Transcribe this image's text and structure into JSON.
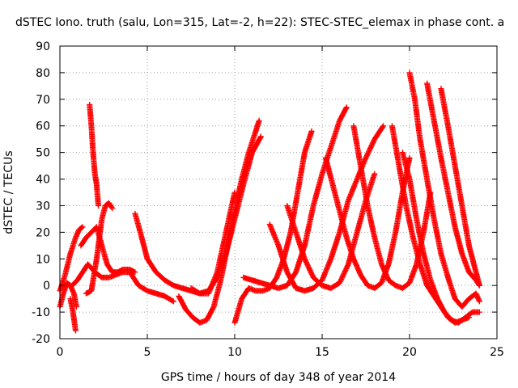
{
  "chart_data": {
    "type": "scatter",
    "title": "dSTEC Iono. truth (salu, Lon=315, Lat=-2, h=22): STEC-STEC_elemax in phase cont. a",
    "xlabel": "GPS time / hours of day 348 of year 2014",
    "ylabel": "dSTEC  / TECUs",
    "xlim": [
      0,
      25
    ],
    "ylim": [
      -20,
      90
    ],
    "xticks": [
      0,
      5,
      10,
      15,
      20,
      25
    ],
    "yticks": [
      -20,
      -10,
      0,
      10,
      20,
      30,
      40,
      50,
      60,
      70,
      80,
      90
    ],
    "grid": true,
    "marker": "+",
    "color": "#ff0000",
    "series": [
      {
        "x": [
          0.0,
          0.2,
          0.4,
          0.6,
          0.8,
          0.95
        ],
        "y": [
          -8,
          -3,
          1,
          0,
          -3,
          -8
        ]
      },
      {
        "x": [
          0.0,
          0.3,
          0.6,
          0.9,
          1.1,
          1.3
        ],
        "y": [
          -2,
          4,
          12,
          18,
          21,
          22
        ]
      },
      {
        "x": [
          0.6,
          0.75,
          0.9
        ],
        "y": [
          -5,
          -10,
          -17
        ]
      },
      {
        "x": [
          0.7,
          1.0,
          1.3,
          1.6,
          2.0,
          2.4,
          2.8,
          3.2,
          3.6,
          4.0,
          4.5,
          5.0,
          5.5,
          6.0,
          6.5
        ],
        "y": [
          0,
          2,
          5,
          8,
          5,
          3,
          3,
          4,
          5,
          5,
          0,
          -2,
          -3,
          -4,
          -6
        ]
      },
      {
        "x": [
          1.2,
          1.5,
          1.8,
          2.1,
          2.4,
          2.7,
          3.0,
          3.3,
          3.6,
          4.0,
          4.3
        ],
        "y": [
          15,
          18,
          20,
          22,
          15,
          8,
          5,
          5,
          6,
          6,
          5
        ]
      },
      {
        "x": [
          1.5,
          1.8,
          2.1,
          2.4,
          2.6,
          2.8,
          3.0
        ],
        "y": [
          -3,
          -2,
          10,
          25,
          30,
          31,
          29
        ]
      },
      {
        "x": [
          1.7,
          1.8,
          1.9,
          2.0,
          2.1,
          2.2
        ],
        "y": [
          68,
          60,
          50,
          42,
          38,
          30
        ]
      },
      {
        "x": [
          4.3,
          4.6,
          5.0,
          5.5,
          6.0,
          6.5,
          7.0,
          7.5,
          8.0,
          8.5,
          9.0,
          9.5,
          10.0
        ],
        "y": [
          27,
          20,
          10,
          5,
          2,
          0,
          -1,
          -2,
          -3,
          -3,
          5,
          20,
          35
        ]
      },
      {
        "x": [
          6.8,
          7.2,
          7.6,
          8.0,
          8.4,
          8.8,
          9.2,
          9.6,
          10.0,
          10.4,
          10.8,
          11.1,
          11.4
        ],
        "y": [
          -4,
          -9,
          -12,
          -14,
          -13,
          -8,
          2,
          15,
          28,
          40,
          50,
          56,
          62
        ]
      },
      {
        "x": [
          7.5,
          8.0,
          8.5,
          9.0,
          9.5,
          10.0,
          10.5,
          11.0,
          11.5
        ],
        "y": [
          -1,
          -3,
          -2,
          3,
          12,
          25,
          38,
          50,
          56
        ]
      },
      {
        "x": [
          10.0,
          10.4,
          10.8,
          11.2,
          11.6,
          12.0,
          12.4,
          12.8,
          13.2,
          13.6,
          14.0,
          14.4
        ],
        "y": [
          -14,
          -5,
          -1,
          -2,
          -2,
          -1,
          3,
          10,
          20,
          35,
          50,
          58
        ]
      },
      {
        "x": [
          10.5,
          11.0,
          11.5,
          12.0,
          12.5,
          13.0,
          13.5,
          14.0,
          14.5,
          15.0,
          15.5,
          16.0,
          16.4
        ],
        "y": [
          3,
          2,
          1,
          0,
          -1,
          0,
          5,
          15,
          30,
          42,
          52,
          62,
          67
        ]
      },
      {
        "x": [
          12.0,
          12.5,
          13.0,
          13.5,
          14.0,
          14.5,
          15.0,
          15.5,
          16.0,
          16.5,
          17.0,
          17.5,
          18.0,
          18.5
        ],
        "y": [
          23,
          15,
          5,
          -1,
          -2,
          -1,
          2,
          10,
          20,
          32,
          40,
          48,
          55,
          60
        ]
      },
      {
        "x": [
          13.0,
          13.5,
          14.0,
          14.5,
          15.0,
          15.5,
          16.0,
          16.5,
          17.0,
          17.5,
          18.0
        ],
        "y": [
          30,
          20,
          10,
          3,
          0,
          -1,
          1,
          8,
          20,
          32,
          42
        ]
      },
      {
        "x": [
          15.2,
          15.6,
          16.0,
          16.4,
          16.8,
          17.2,
          17.6,
          18.0,
          18.4,
          18.8,
          19.2,
          19.6,
          20.0
        ],
        "y": [
          48,
          38,
          28,
          18,
          10,
          4,
          0,
          -1,
          1,
          8,
          20,
          35,
          48
        ]
      },
      {
        "x": [
          16.8,
          17.2,
          17.6,
          18.0,
          18.4,
          18.8,
          19.2,
          19.6,
          20.0,
          20.4,
          20.8,
          21.2
        ],
        "y": [
          60,
          45,
          30,
          18,
          8,
          2,
          0,
          -1,
          1,
          8,
          20,
          35
        ]
      },
      {
        "x": [
          19.0,
          19.4,
          19.8,
          20.2,
          20.6,
          21.0,
          21.4,
          21.8,
          22.2,
          22.6,
          23.0,
          23.4
        ],
        "y": [
          60,
          45,
          30,
          18,
          8,
          0,
          -4,
          -8,
          -12,
          -14,
          -13,
          -12
        ]
      },
      {
        "x": [
          19.6,
          20.0,
          20.4,
          20.8,
          21.2,
          21.6,
          22.0,
          22.4,
          22.8,
          23.2,
          23.6,
          24.0
        ],
        "y": [
          50,
          40,
          25,
          12,
          2,
          -5,
          -10,
          -13,
          -14,
          -12,
          -10,
          -10
        ]
      },
      {
        "x": [
          20.0,
          20.3,
          20.6,
          21.0,
          21.4,
          21.8,
          22.2,
          22.6,
          23.0,
          23.4,
          23.8,
          24.0
        ],
        "y": [
          80,
          70,
          55,
          40,
          25,
          12,
          3,
          -5,
          -8,
          -5,
          -3,
          -6
        ]
      },
      {
        "x": [
          21.0,
          21.4,
          21.8,
          22.2,
          22.6,
          23.0,
          23.4,
          23.8,
          24.0
        ],
        "y": [
          76,
          62,
          48,
          35,
          22,
          12,
          5,
          2,
          0
        ]
      },
      {
        "x": [
          21.8,
          22.2,
          22.6,
          23.0,
          23.4,
          23.8,
          24.0
        ],
        "y": [
          74,
          60,
          45,
          30,
          15,
          5,
          0
        ]
      }
    ]
  }
}
